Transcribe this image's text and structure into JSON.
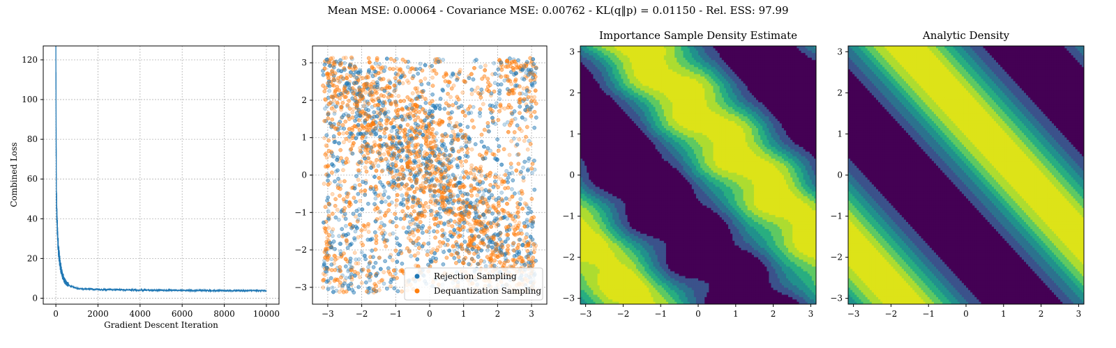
{
  "figure": {
    "suptitle": "Mean MSE: 0.00064 - Covariance MSE: 0.00762 - KL(q‖p) = 0.01150 - Rel. ESS: 97.99"
  },
  "chart_data": [
    {
      "type": "line",
      "title": "",
      "xlabel": "Gradient Descent Iteration",
      "ylabel": "Combined Loss",
      "xlim": [
        -600,
        10600
      ],
      "ylim": [
        -3,
        127
      ],
      "xticks": [
        0,
        2000,
        4000,
        6000,
        8000,
        10000
      ],
      "yticks": [
        0,
        20,
        40,
        60,
        80,
        100,
        120
      ],
      "grid": true,
      "color": "#1f77b4",
      "series": [
        {
          "x": [
            0,
            5,
            10,
            20,
            30,
            50,
            75,
            100,
            150,
            200,
            300,
            400,
            500,
            700,
            1000,
            1500,
            2000,
            3000,
            4000,
            5000,
            6000,
            7000,
            8000,
            9000,
            10000
          ],
          "y": [
            121,
            100,
            85,
            62,
            50,
            40,
            33,
            28,
            22,
            17,
            12,
            9,
            7.5,
            6,
            5,
            4.6,
            4.4,
            4.2,
            4.1,
            4.0,
            3.9,
            3.85,
            3.8,
            3.8,
            3.8
          ]
        }
      ]
    },
    {
      "type": "scatter",
      "title": "",
      "xlabel": "",
      "ylabel": "",
      "xlim": [
        -3.45,
        3.45
      ],
      "ylim": [
        -3.45,
        3.45
      ],
      "xticks": [
        -3,
        -2,
        -1,
        0,
        1,
        2,
        3
      ],
      "yticks": [
        -3,
        -2,
        -1,
        0,
        1,
        2,
        3
      ],
      "grid": true,
      "legend_position": "lower-right",
      "series": [
        {
          "name": "Rejection Sampling",
          "color": "#1f77b4",
          "count": 2200
        },
        {
          "name": "Dequantization Sampling",
          "color": "#ff7f0e",
          "count": 3200
        }
      ]
    },
    {
      "type": "heatmap",
      "title": "Importance Sample Density Estimate",
      "xlim": [
        -3.14159,
        3.14159
      ],
      "ylim": [
        -3.14159,
        3.14159
      ],
      "xticks": [
        -3,
        -2,
        -1,
        0,
        1,
        2,
        3
      ],
      "yticks": [
        -3,
        -2,
        -1,
        0,
        1,
        2,
        3
      ],
      "levels": 7,
      "colormap": [
        "#440154",
        "#3b528b",
        "#2c728e",
        "#21918c",
        "#28ae80",
        "#5ec962",
        "#addc30",
        "#dde318"
      ]
    },
    {
      "type": "heatmap",
      "title": "Analytic Density",
      "xlim": [
        -3.14159,
        3.14159
      ],
      "ylim": [
        -3.14159,
        3.14159
      ],
      "xticks": [
        -3,
        -2,
        -1,
        0,
        1,
        2,
        3
      ],
      "yticks": [
        -3,
        -2,
        -1,
        0,
        1,
        2,
        3
      ],
      "levels": 7,
      "colormap": [
        "#440154",
        "#3b528b",
        "#2c728e",
        "#21918c",
        "#28ae80",
        "#5ec962",
        "#addc30",
        "#dde318"
      ]
    }
  ]
}
